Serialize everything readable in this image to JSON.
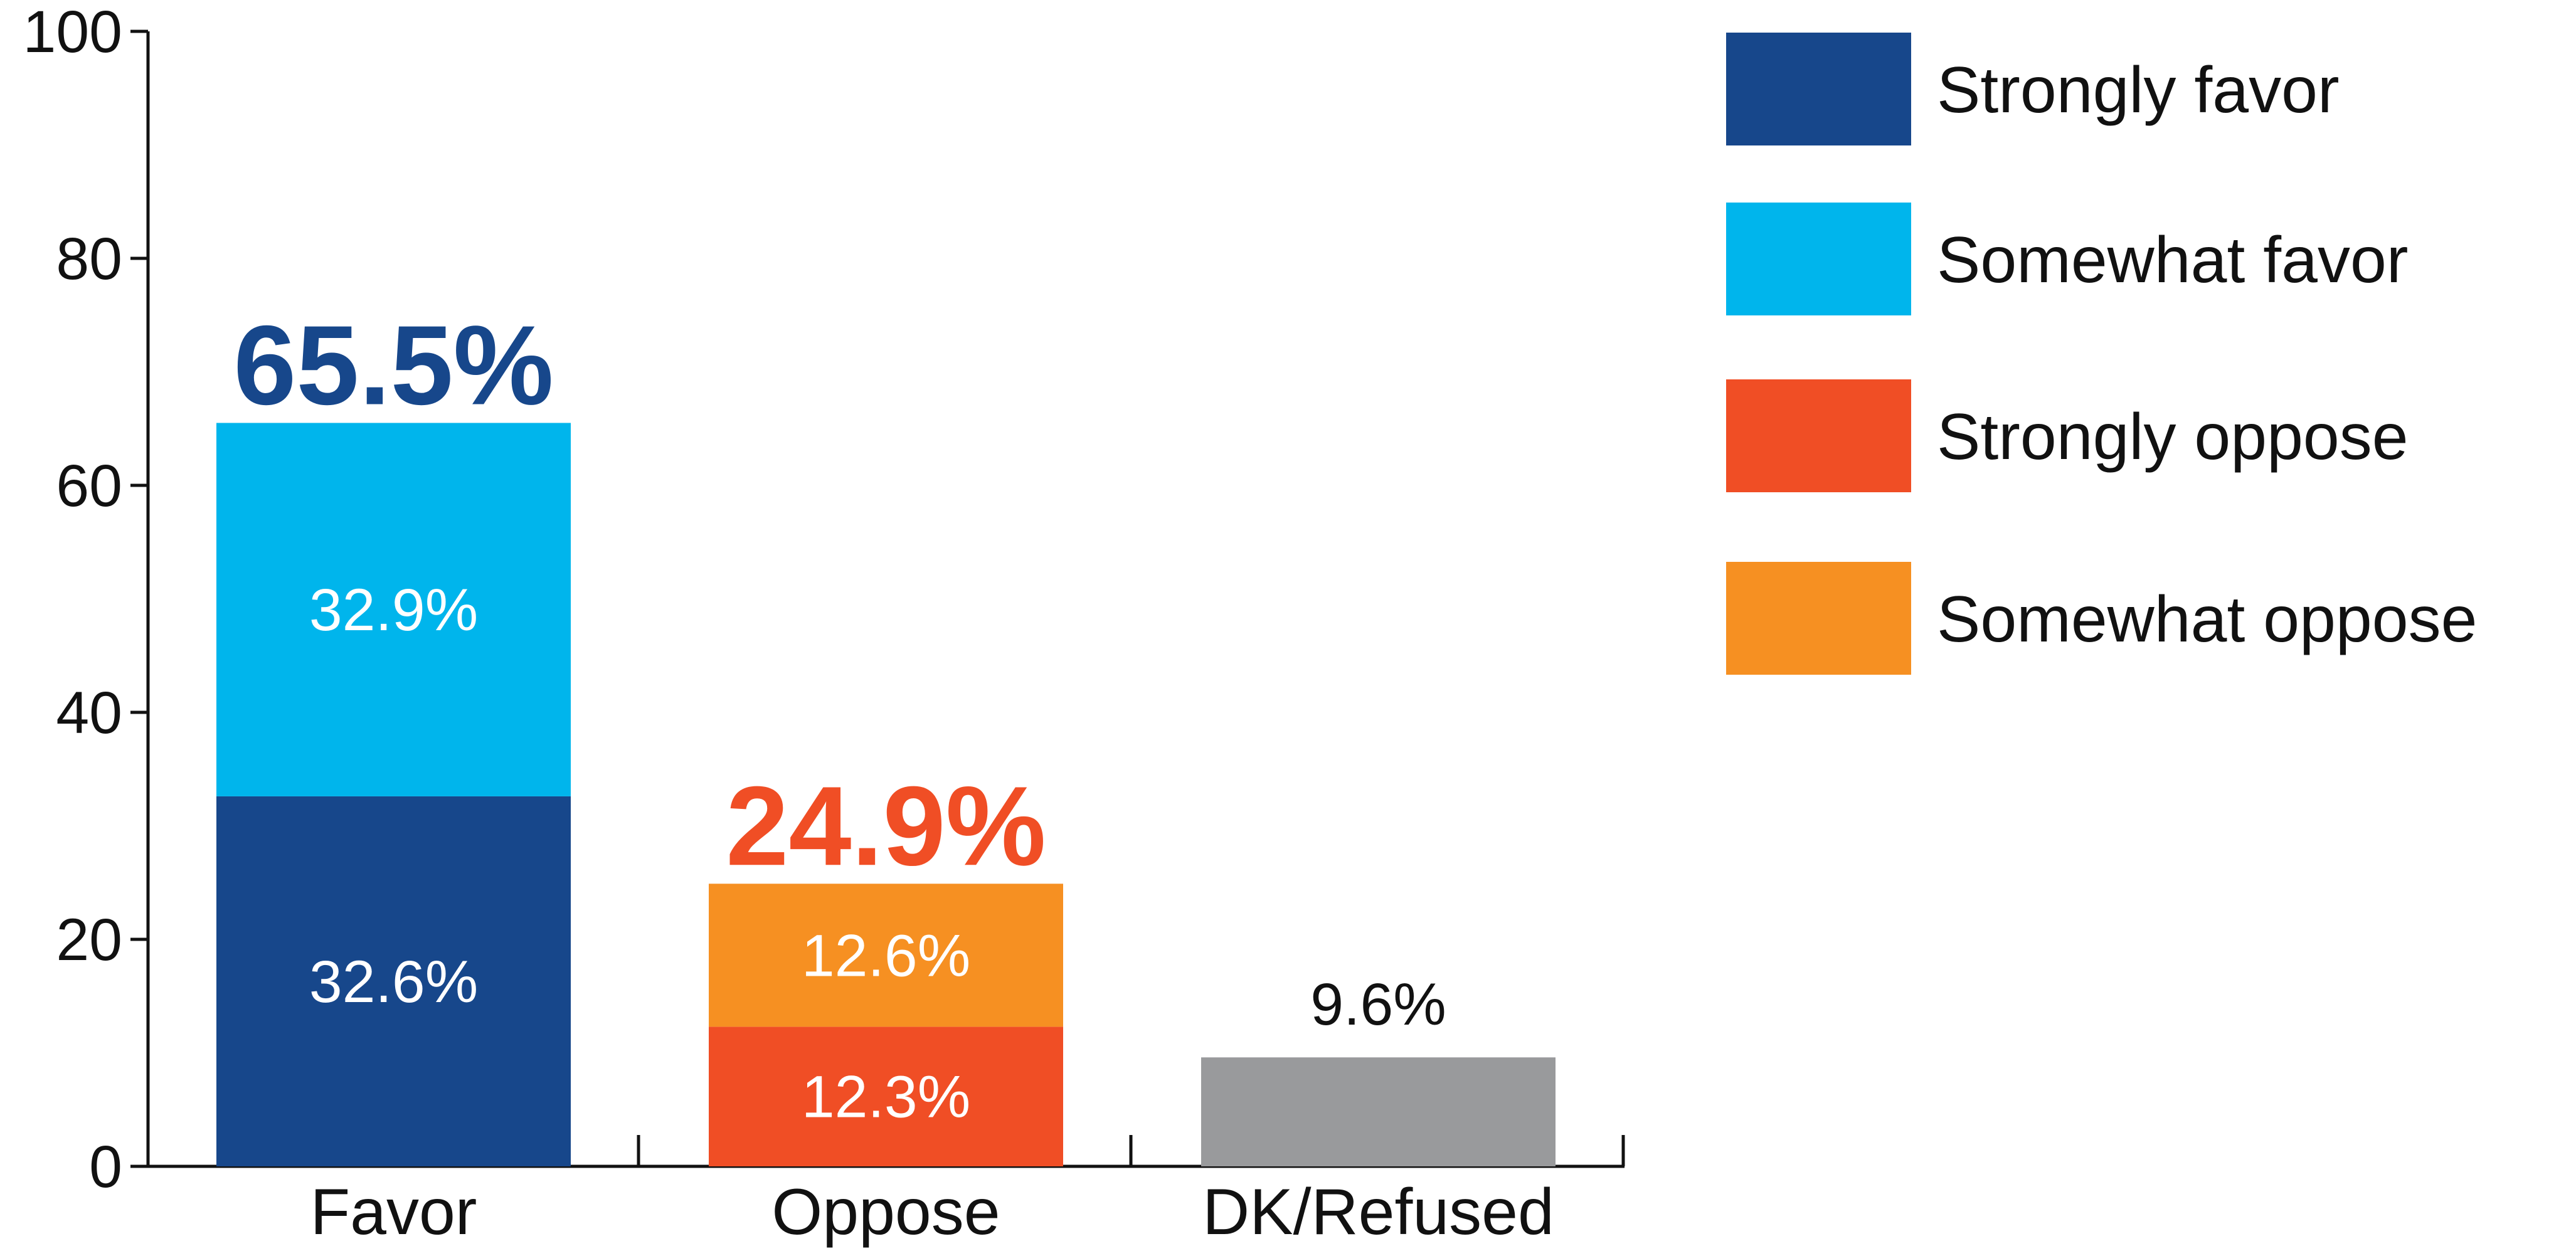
{
  "chart_data": {
    "type": "bar",
    "stacked": true,
    "categories": [
      "Favor",
      "Oppose",
      "DK/Refused"
    ],
    "ylim": [
      0,
      100
    ],
    "yticks": [
      0,
      20,
      40,
      60,
      80,
      100
    ],
    "grid": false,
    "legend_position": "right",
    "series": [
      {
        "name": "Strongly favor",
        "color": "#17478b",
        "values": [
          32.6,
          0,
          0
        ],
        "labels": [
          "32.6%",
          "",
          ""
        ]
      },
      {
        "name": "Somewhat favor",
        "color": "#00b5ec",
        "values": [
          32.9,
          0,
          0
        ],
        "labels": [
          "32.9%",
          "",
          ""
        ]
      },
      {
        "name": "Strongly oppose",
        "color": "#f04e25",
        "values": [
          0,
          12.3,
          0
        ],
        "labels": [
          "",
          "12.3%",
          ""
        ]
      },
      {
        "name": "Somewhat oppose",
        "color": "#f69022",
        "values": [
          0,
          12.6,
          0
        ],
        "labels": [
          "",
          "12.6%",
          ""
        ]
      }
    ],
    "other": {
      "color": "#999a9c",
      "values": [
        0,
        0,
        9.6
      ],
      "labels": [
        "",
        "",
        "9.6%"
      ]
    },
    "totals": [
      {
        "value": 65.5,
        "label": "65.5%",
        "color": "#17478b"
      },
      {
        "value": 24.9,
        "label": "24.9%",
        "color": "#f04e25"
      },
      {
        "value": 9.6,
        "label": "",
        "color": ""
      }
    ]
  }
}
